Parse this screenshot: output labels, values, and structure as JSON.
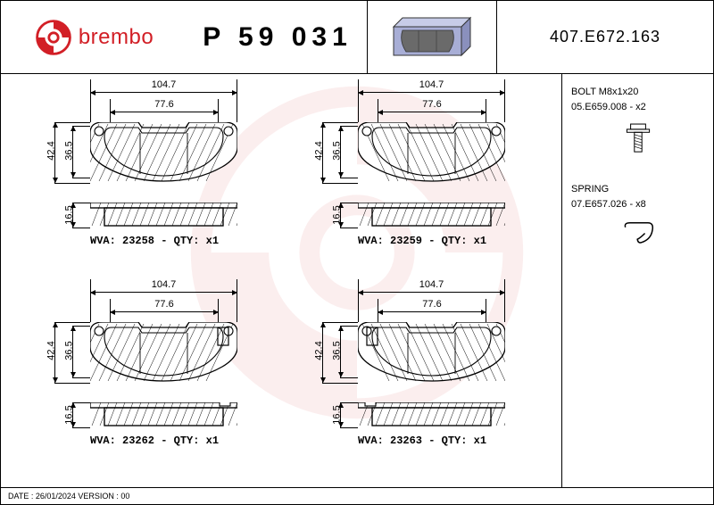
{
  "brand": "brembo",
  "part_number": "P 59 031",
  "header_code": "407.E672.163",
  "brand_color": "#d21f26",
  "pads": {
    "tl": {
      "w_outer": "104.7",
      "w_inner": "77.6",
      "h_outer": "42.4",
      "h_inner": "36.5",
      "thick": "16.5",
      "wva": "WVA: 23258 - QTY: x1"
    },
    "tr": {
      "w_outer": "104.7",
      "w_inner": "77.6",
      "h_outer": "42.4",
      "h_inner": "36.5",
      "thick": "16.5",
      "wva": "WVA: 23259 - QTY: x1"
    },
    "bl": {
      "w_outer": "104.7",
      "w_inner": "77.6",
      "h_outer": "42.4",
      "h_inner": "36.5",
      "thick": "16.5",
      "wva": "WVA: 23262 - QTY: x1"
    },
    "br": {
      "w_outer": "104.7",
      "w_inner": "77.6",
      "h_outer": "42.4",
      "h_inner": "36.5",
      "thick": "16.5",
      "wva": "WVA: 23263 - QTY: x1"
    }
  },
  "hardware": {
    "bolt": {
      "title": "BOLT M8x1x20",
      "code": "05.E659.008 - x2"
    },
    "spring": {
      "title": "SPRING",
      "code": "07.E657.026 - x8"
    }
  },
  "footer": "DATE : 26/01/2024 VERSION : 00",
  "colors": {
    "pad_3d_fill": "#a8aed6",
    "pad_3d_top": "#c7cce8",
    "line": "#000000"
  }
}
